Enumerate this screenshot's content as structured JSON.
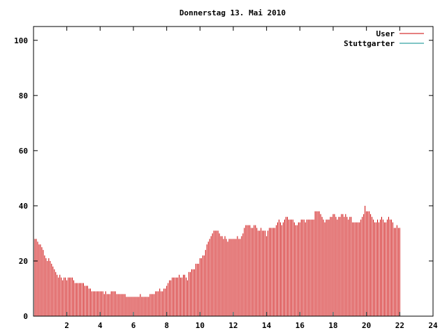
{
  "chart_data": {
    "type": "bar",
    "title": "Donnerstag 13. Mai 2010",
    "xlabel": "",
    "ylabel": "",
    "xlim": [
      0,
      24
    ],
    "ylim": [
      0,
      105
    ],
    "x_ticks": [
      2,
      4,
      6,
      8,
      10,
      12,
      14,
      16,
      18,
      20,
      22,
      24
    ],
    "y_ticks": [
      0,
      20,
      40,
      60,
      80,
      100
    ],
    "grid": false,
    "legend_position": "top-right",
    "series": [
      {
        "name": "User",
        "color": "#cc0000",
        "sample_interval_hours": 0.08333,
        "values": [
          28,
          28,
          27,
          26,
          26,
          25,
          24,
          22,
          21,
          20,
          21,
          20,
          19,
          18,
          17,
          16,
          15,
          14,
          15,
          14,
          13,
          14,
          14,
          13,
          14,
          14,
          14,
          14,
          13,
          12,
          12,
          12,
          12,
          12,
          12,
          12,
          11,
          11,
          11,
          10,
          10,
          9,
          9,
          9,
          9,
          9,
          9,
          9,
          9,
          9,
          8,
          9,
          8,
          8,
          8,
          9,
          9,
          9,
          9,
          8,
          8,
          8,
          8,
          8,
          8,
          8,
          7,
          7,
          7,
          7,
          7,
          7,
          7,
          7,
          7,
          7,
          8,
          7,
          7,
          7,
          7,
          7,
          7,
          8,
          8,
          8,
          8,
          9,
          9,
          9,
          10,
          9,
          9,
          10,
          10,
          11,
          12,
          13,
          13,
          14,
          14,
          14,
          14,
          14,
          15,
          14,
          14,
          15,
          15,
          14,
          13,
          16,
          16,
          17,
          17,
          17,
          19,
          19,
          19,
          21,
          21,
          22,
          22,
          24,
          26,
          27,
          28,
          29,
          30,
          31,
          31,
          31,
          31,
          30,
          29,
          29,
          28,
          29,
          28,
          27,
          28,
          28,
          28,
          28,
          28,
          28,
          29,
          28,
          28,
          29,
          30,
          32,
          33,
          33,
          33,
          33,
          32,
          32,
          33,
          33,
          32,
          31,
          31,
          32,
          31,
          31,
          31,
          29,
          31,
          32,
          32,
          32,
          32,
          32,
          33,
          34,
          35,
          34,
          33,
          34,
          35,
          36,
          36,
          35,
          35,
          35,
          35,
          34,
          33,
          33,
          34,
          34,
          35,
          35,
          35,
          34,
          35,
          35,
          35,
          35,
          35,
          35,
          38,
          38,
          38,
          38,
          37,
          36,
          35,
          34,
          35,
          35,
          35,
          36,
          36,
          37,
          37,
          36,
          35,
          36,
          36,
          37,
          37,
          36,
          37,
          36,
          35,
          36,
          36,
          34,
          34,
          34,
          34,
          34,
          34,
          35,
          36,
          37,
          40,
          38,
          38,
          38,
          37,
          36,
          35,
          34,
          34,
          35,
          34,
          35,
          36,
          35,
          34,
          34,
          35,
          36,
          35,
          35,
          34,
          32,
          32,
          33,
          32,
          32
        ]
      },
      {
        "name": "Stuttgarter",
        "color": "#008b8b",
        "values": []
      }
    ]
  }
}
